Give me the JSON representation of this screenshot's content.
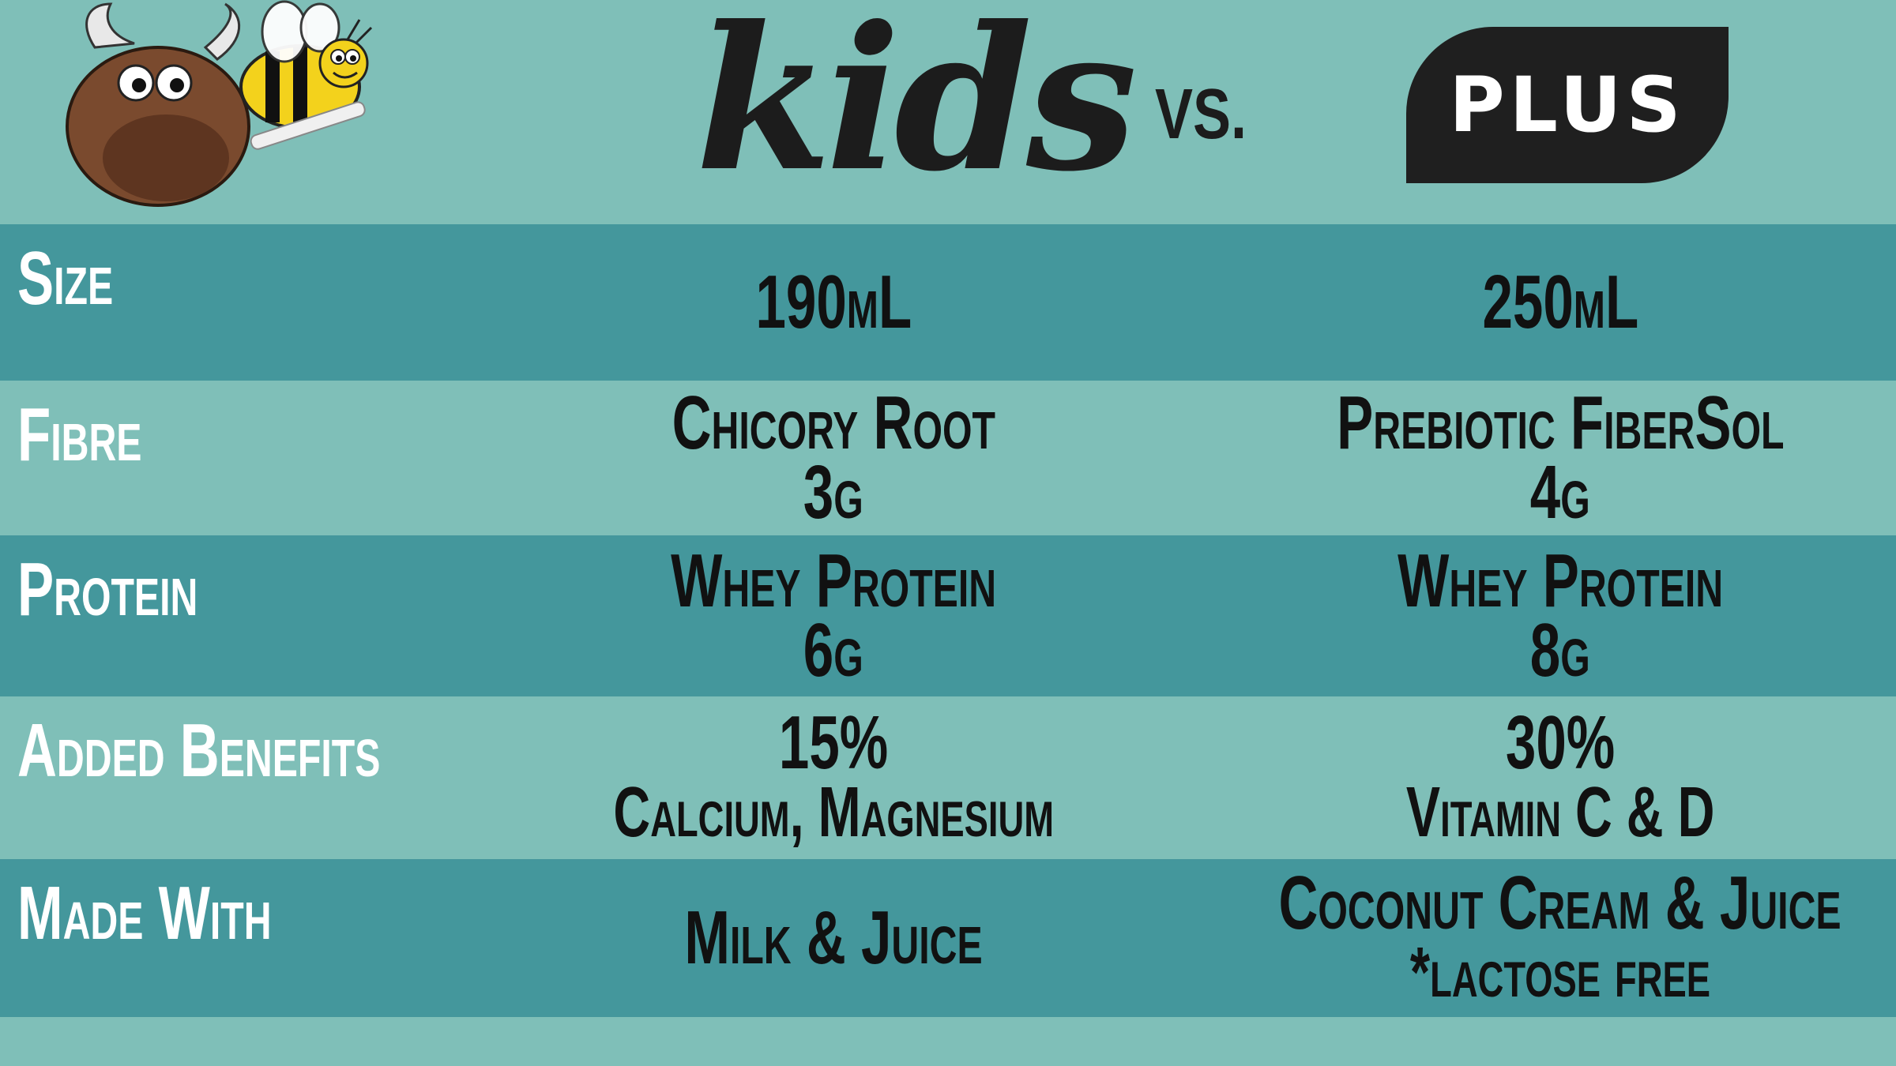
{
  "header": {
    "kids_label": "kids",
    "vs_label": "VS.",
    "plus_label": "PLUS"
  },
  "colors": {
    "background": "#7fbfb8",
    "row_dark": "#44979c",
    "label_text": "#ffffff",
    "value_text": "#111111",
    "badge": "#1f1f1f"
  },
  "mascot": {
    "icon": "yak-and-bee-mascot-icon"
  },
  "rows": [
    {
      "label": "Size",
      "kids": [
        "190mL"
      ],
      "plus": [
        "250mL"
      ]
    },
    {
      "label": "Fibre",
      "kids": [
        "Chicory Root",
        "3g"
      ],
      "plus": [
        "Prebiotic FiberSol",
        "4g"
      ]
    },
    {
      "label": "Protein",
      "kids": [
        "Whey Protein",
        "6g"
      ],
      "plus": [
        "Whey Protein",
        "8g"
      ]
    },
    {
      "label": "Added Benefits",
      "kids": [
        "15%",
        "Calcium, Magnesium"
      ],
      "plus": [
        "30%",
        "Vitamin C & D"
      ]
    },
    {
      "label": "Made With",
      "kids": [
        "Milk & Juice"
      ],
      "plus": [
        "Coconut Cream & Juice",
        "*lactose free"
      ]
    }
  ]
}
